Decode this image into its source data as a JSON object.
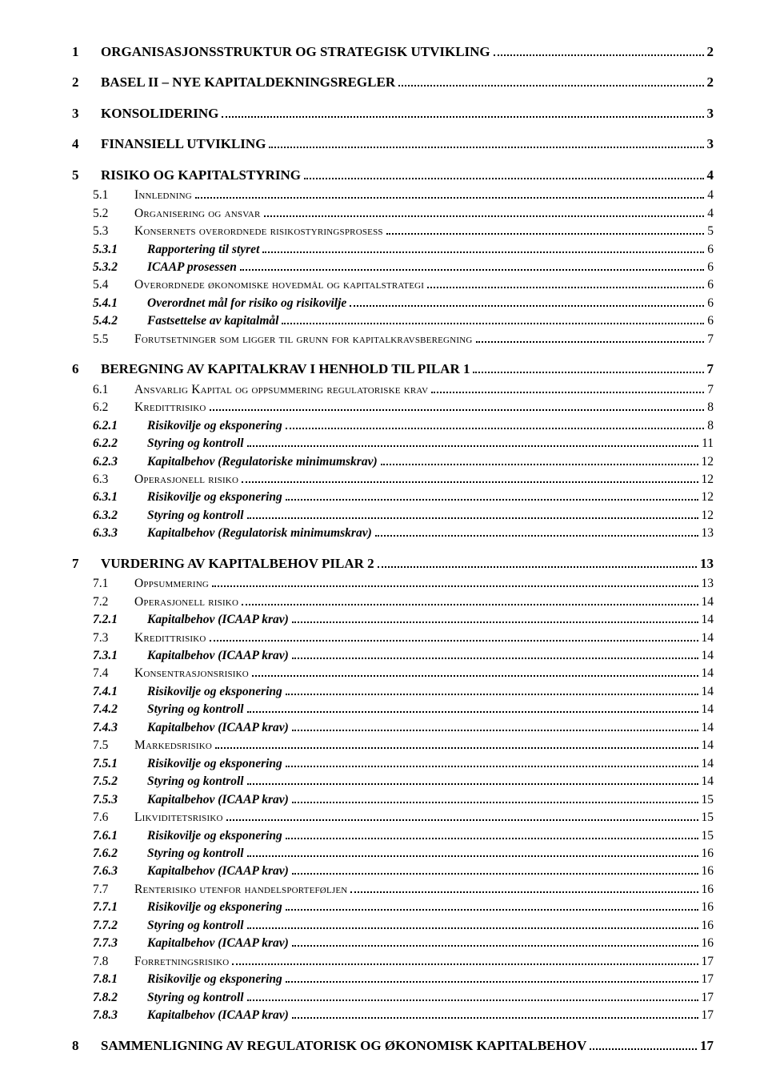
{
  "toc": [
    {
      "lvl": 1,
      "num": "1",
      "title": "ORGANISASJONSSTRUKTUR OG STRATEGISK UTVIKLING",
      "pg": "2"
    },
    {
      "lvl": 1,
      "num": "2",
      "title": "BASEL II – NYE KAPITALDEKNINGSREGLER",
      "pg": "2"
    },
    {
      "lvl": 1,
      "num": "3",
      "title": "KONSOLIDERING",
      "pg": "3"
    },
    {
      "lvl": 1,
      "num": "4",
      "title": "FINANSIELL UTVIKLING",
      "pg": "3"
    },
    {
      "lvl": 1,
      "num": "5",
      "title": "RISIKO OG KAPITALSTYRING",
      "pg": "4"
    },
    {
      "lvl": 2,
      "num": "5.1",
      "title": "Innledning",
      "pg": "4"
    },
    {
      "lvl": 2,
      "num": "5.2",
      "title": "Organisering og ansvar",
      "pg": "4"
    },
    {
      "lvl": 2,
      "num": "5.3",
      "title": "Konsernets overordnede risikostyringsprosess",
      "pg": "5"
    },
    {
      "lvl": 3,
      "num": "5.3.1",
      "title": "Rapportering til styret",
      "pg": "6"
    },
    {
      "lvl": 3,
      "num": "5.3.2",
      "title": "ICAAP prosessen",
      "pg": "6"
    },
    {
      "lvl": 2,
      "num": "5.4",
      "title": "Overordnede økonomiske hovedmål og kapitalstrategi",
      "pg": "6"
    },
    {
      "lvl": 3,
      "num": "5.4.1",
      "title": "Overordnet mål for risiko og risikovilje",
      "pg": "6"
    },
    {
      "lvl": 3,
      "num": "5.4.2",
      "title": "Fastsettelse av kapitalmål",
      "pg": "6"
    },
    {
      "lvl": 2,
      "num": "5.5",
      "title": "Forutsetninger som ligger til grunn for kapitalkravsberegning",
      "pg": "7"
    },
    {
      "lvl": 1,
      "num": "6",
      "title": "BEREGNING AV KAPITALKRAV I HENHOLD TIL PILAR 1",
      "pg": "7"
    },
    {
      "lvl": 2,
      "num": "6.1",
      "title": "Ansvarlig Kapital og oppsummering regulatoriske krav",
      "pg": "7"
    },
    {
      "lvl": 2,
      "num": "6.2",
      "title": "Kredittrisiko",
      "pg": "8"
    },
    {
      "lvl": 3,
      "num": "6.2.1",
      "title": "Risikovilje og eksponering",
      "pg": "8"
    },
    {
      "lvl": 3,
      "num": "6.2.2",
      "title": "Styring og kontroll",
      "pg": "11"
    },
    {
      "lvl": 3,
      "num": "6.2.3",
      "title": "Kapitalbehov (Regulatoriske minimumskrav)",
      "pg": "12"
    },
    {
      "lvl": 2,
      "num": "6.3",
      "title": "Operasjonell risiko",
      "pg": "12"
    },
    {
      "lvl": 3,
      "num": "6.3.1",
      "title": "Risikovilje og eksponering",
      "pg": "12"
    },
    {
      "lvl": 3,
      "num": "6.3.2",
      "title": "Styring og kontroll",
      "pg": "12"
    },
    {
      "lvl": 3,
      "num": "6.3.3",
      "title": "Kapitalbehov (Regulatorisk minimumskrav)",
      "pg": "13"
    },
    {
      "lvl": 1,
      "num": "7",
      "title": "VURDERING AV KAPITALBEHOV PILAR 2",
      "pg": "13"
    },
    {
      "lvl": 2,
      "num": "7.1",
      "title": "Oppsummering",
      "pg": "13"
    },
    {
      "lvl": 2,
      "num": "7.2",
      "title": "Operasjonell risiko",
      "pg": "14"
    },
    {
      "lvl": 3,
      "num": "7.2.1",
      "title": "Kapitalbehov (ICAAP krav)",
      "pg": "14"
    },
    {
      "lvl": 2,
      "num": "7.3",
      "title": "Kredittrisiko",
      "pg": "14"
    },
    {
      "lvl": 3,
      "num": "7.3.1",
      "title": "Kapitalbehov (ICAAP krav)",
      "pg": "14"
    },
    {
      "lvl": 2,
      "num": "7.4",
      "title": "Konsentrasjonsrisiko",
      "pg": "14"
    },
    {
      "lvl": 3,
      "num": "7.4.1",
      "title": "Risikovilje og eksponering",
      "pg": "14"
    },
    {
      "lvl": 3,
      "num": "7.4.2",
      "title": "Styring og kontroll",
      "pg": "14"
    },
    {
      "lvl": 3,
      "num": "7.4.3",
      "title": "Kapitalbehov (ICAAP krav)",
      "pg": "14"
    },
    {
      "lvl": 2,
      "num": "7.5",
      "title": "Markedsrisiko",
      "pg": "14"
    },
    {
      "lvl": 3,
      "num": "7.5.1",
      "title": "Risikovilje og eksponering",
      "pg": "14"
    },
    {
      "lvl": 3,
      "num": "7.5.2",
      "title": "Styring og kontroll",
      "pg": "14"
    },
    {
      "lvl": 3,
      "num": "7.5.3",
      "title": "Kapitalbehov (ICAAP krav)",
      "pg": "15"
    },
    {
      "lvl": 2,
      "num": "7.6",
      "title": "Likviditetsrisiko",
      "pg": "15"
    },
    {
      "lvl": 3,
      "num": "7.6.1",
      "title": "Risikovilje og eksponering",
      "pg": "15"
    },
    {
      "lvl": 3,
      "num": "7.6.2",
      "title": "Styring og kontroll",
      "pg": "16"
    },
    {
      "lvl": 3,
      "num": "7.6.3",
      "title": "Kapitalbehov (ICAAP krav)",
      "pg": "16"
    },
    {
      "lvl": 2,
      "num": "7.7",
      "title": "Renterisiko utenfor handelsporteføljen",
      "pg": "16"
    },
    {
      "lvl": 3,
      "num": "7.7.1",
      "title": "Risikovilje og eksponering",
      "pg": "16"
    },
    {
      "lvl": 3,
      "num": "7.7.2",
      "title": "Styring og kontroll",
      "pg": "16"
    },
    {
      "lvl": 3,
      "num": "7.7.3",
      "title": "Kapitalbehov (ICAAP krav)",
      "pg": "16"
    },
    {
      "lvl": 2,
      "num": "7.8",
      "title": "Forretningsrisiko",
      "pg": "17"
    },
    {
      "lvl": 3,
      "num": "7.8.1",
      "title": "Risikovilje og eksponering",
      "pg": "17"
    },
    {
      "lvl": 3,
      "num": "7.8.2",
      "title": "Styring og kontroll",
      "pg": "17"
    },
    {
      "lvl": 3,
      "num": "7.8.3",
      "title": "Kapitalbehov (ICAAP krav)",
      "pg": "17"
    },
    {
      "lvl": 1,
      "num": "8",
      "title": "SAMMENLIGNING AV REGULATORISK OG ØKONOMISK KAPITALBEHOV",
      "pg": "17"
    }
  ]
}
